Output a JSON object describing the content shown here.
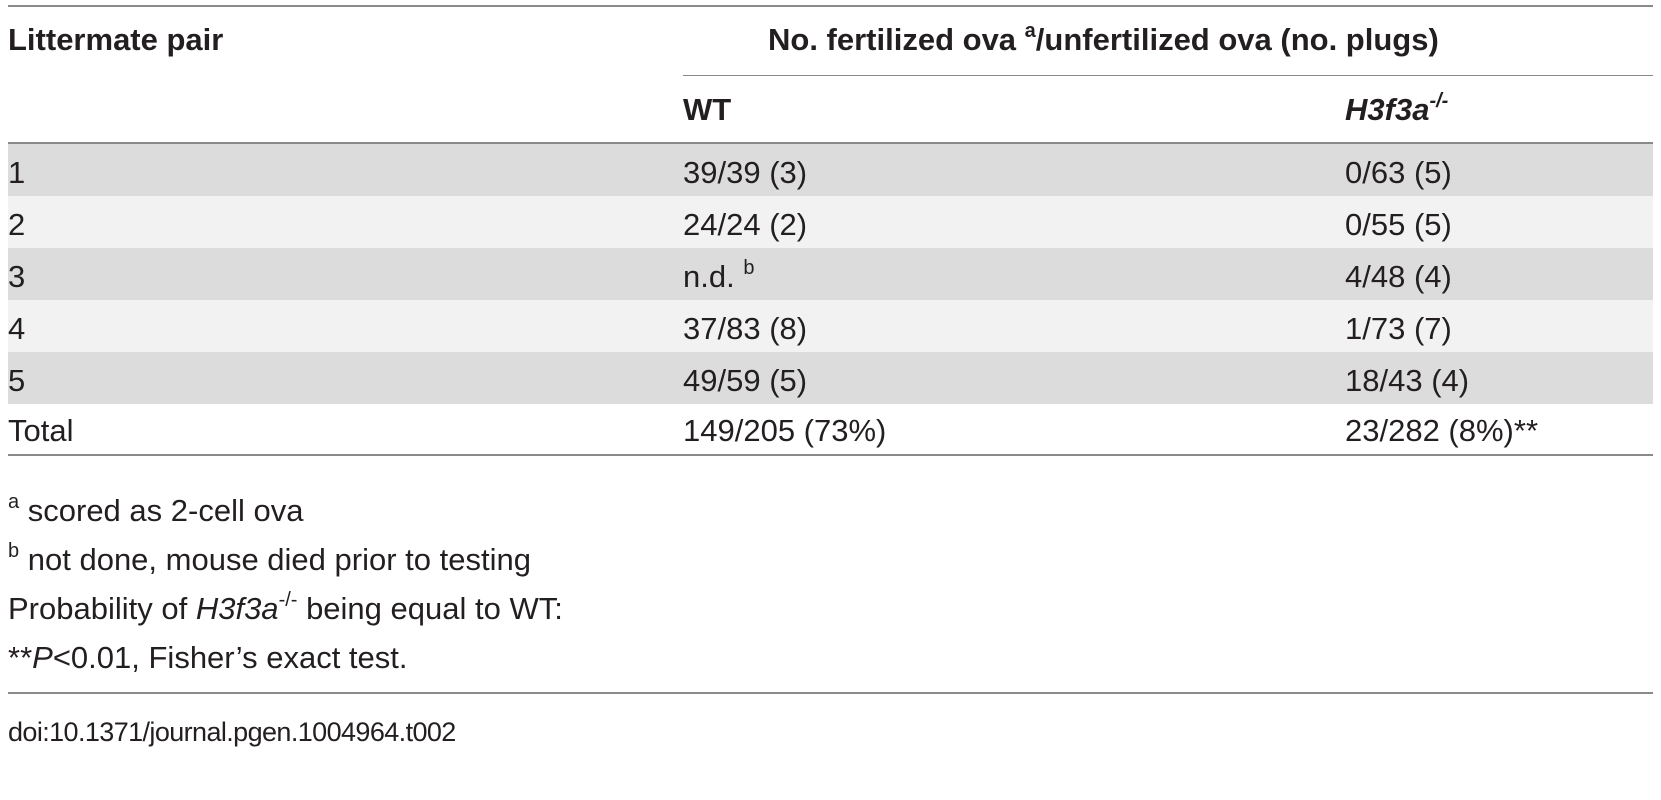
{
  "table": {
    "header": {
      "first_col": "Littermate pair",
      "spanner": "No. fertilized ova",
      "spanner_sup": "a",
      "spanner_rest": "/unfertilized ova (no. plugs)",
      "col_wt": "WT",
      "col_mut": "H3f3a",
      "col_mut_sup": "-/-"
    },
    "rows": [
      {
        "pair": "1",
        "wt": "39/39 (3)",
        "wt_sup": "",
        "mut": "0/63 (5)"
      },
      {
        "pair": "2",
        "wt": "24/24 (2)",
        "wt_sup": "",
        "mut": "0/55 (5)"
      },
      {
        "pair": "3",
        "wt": "n.d.",
        "wt_sup": "b",
        "mut": "4/48 (4)"
      },
      {
        "pair": "4",
        "wt": "37/83 (8)",
        "wt_sup": "",
        "mut": "1/73 (7)"
      },
      {
        "pair": "5",
        "wt": "49/59 (5)",
        "wt_sup": "",
        "mut": "18/43 (4)"
      }
    ],
    "total": {
      "pair": "Total",
      "wt": "149/205 (73%)",
      "mut": "23/282 (8%)**"
    }
  },
  "footnotes": {
    "a_mark": "a",
    "a_text": "scored as 2-cell ova",
    "b_mark": "b",
    "b_text": "not done, mouse died prior to testing",
    "prob_pre": "Probability of ",
    "prob_gene": "H3f3a",
    "prob_sup": "-/-",
    "prob_post": " being equal to WT:",
    "sig_stars": "**",
    "sig_p": "P",
    "sig_rest": "<0.01, Fisher’s exact test."
  },
  "doi": "doi:10.1371/journal.pgen.1004964.t002"
}
